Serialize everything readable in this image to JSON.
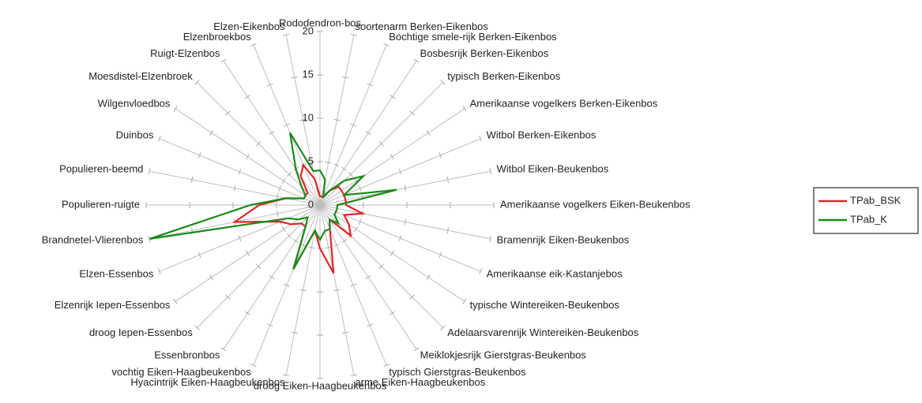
{
  "chart_data": {
    "type": "radar",
    "categories": [
      "Rododendron-bos",
      "soortenarm Berken-Eikenbos",
      "Bochtige smele-rijk Berken-Eikenbos",
      "Bosbesrijk Berken-Eikenbos",
      "typisch Berken-Eikenbos",
      "Amerikaanse vogelkers Berken-Eikenbos",
      "Witbol Berken-Eikenbos",
      "Witbol Eiken-Beukenbos",
      "Amerikaanse vogelkers Eiken-Beukenbos",
      "Bramenrijk Eiken-Beukenbos",
      "Amerikaanse eik-Kastanjebos",
      "typische Wintereiken-Beukenbos",
      "Adelaarsvarenrijk Wintereiken-Beukenbos",
      "Meiklokjesrijk Gierstgras-Beukenbos",
      "typisch Gierstgras-Beukenbos",
      "arme Eiken-Haagbeukenbos",
      "droog Eiken-Haagbeukenbos",
      "Hyacintrijk Eiken-Haagbeukenbos",
      "vochtig Eiken-Haagbeukenbos",
      "Essenbronbos",
      "droog Iepen-Essenbos",
      "Elzenrijk Iepen-Essenbos",
      "Elzen-Essenbos",
      "Brandnetel-Vlierenbos",
      "Populieren-ruigte",
      "Populieren-beemd",
      "Duinbos",
      "Wilgenvloedbos",
      "Moesdistel-Elzenbroek",
      "Ruigt-Elzenbos",
      "Elzenbroekbos",
      "Elzen-Eikenbos"
    ],
    "series": [
      {
        "name": "TPab_BSK",
        "color": "#e0262a",
        "values": [
          1,
          1,
          1,
          2,
          3,
          3,
          3,
          3,
          3,
          5,
          3,
          4,
          5,
          2,
          3,
          8,
          5,
          3,
          8,
          3,
          3,
          4,
          5,
          10,
          7,
          4,
          2,
          2,
          2,
          4,
          5,
          3
        ]
      },
      {
        "name": "TPab_K",
        "color": "#1a8a1a",
        "values": [
          4,
          3,
          1,
          2,
          4,
          6,
          3,
          9,
          2,
          2,
          2,
          2,
          3,
          2,
          3,
          3,
          4,
          3,
          8,
          3,
          2,
          3,
          4,
          20,
          8,
          4,
          2,
          2,
          3,
          5,
          9,
          4
        ]
      }
    ],
    "ylim": [
      0,
      20
    ],
    "yticks": [
      0,
      5,
      10,
      15,
      20
    ],
    "legend": "right"
  }
}
